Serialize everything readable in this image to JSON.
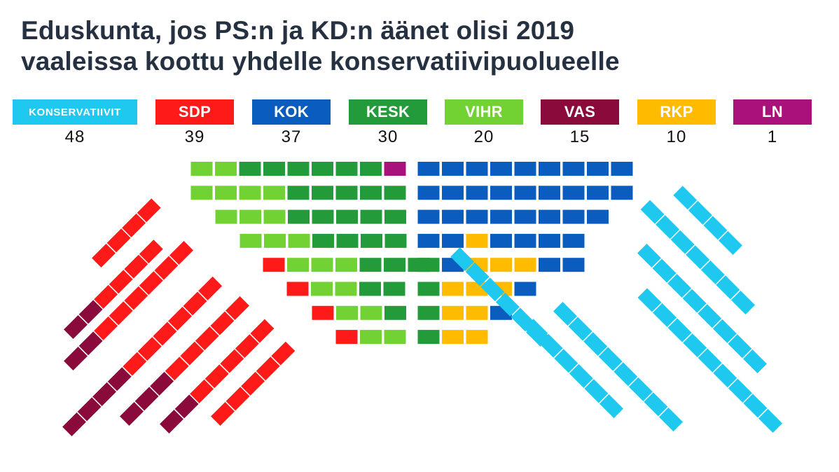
{
  "title": {
    "line1": "Eduskunta, jos PS:n ja KD:n äänet olisi 2019",
    "line2": "vaaleissa koottu yhdelle konservatiivipuolueelle"
  },
  "chart_data": {
    "type": "parliament",
    "title": "Eduskunta, jos PS:n ja KD:n äänet olisi 2019 vaaleissa koottu yhdelle konservatiivipuolueelle",
    "total_seats": 200,
    "legend_placement": "top",
    "parties": [
      {
        "key": "KONS",
        "label": "KONSERVATIIVIT",
        "seats": 48,
        "color": "#1ec8ef"
      },
      {
        "key": "SDP",
        "label": "SDP",
        "seats": 39,
        "color": "#ff1a1a"
      },
      {
        "key": "KOK",
        "label": "KOK",
        "seats": 37,
        "color": "#0a5cbf"
      },
      {
        "key": "KESK",
        "label": "KESK",
        "seats": 30,
        "color": "#249b3a"
      },
      {
        "key": "VIHR",
        "label": "VIHR",
        "seats": 20,
        "color": "#72d233"
      },
      {
        "key": "VAS",
        "label": "VAS",
        "seats": 15,
        "color": "#8a0a3c"
      },
      {
        "key": "RKP",
        "label": "RKP",
        "seats": 10,
        "color": "#ffbb00"
      },
      {
        "key": "LN",
        "label": "LN",
        "seats": 1,
        "color": "#a8127a"
      }
    ]
  }
}
